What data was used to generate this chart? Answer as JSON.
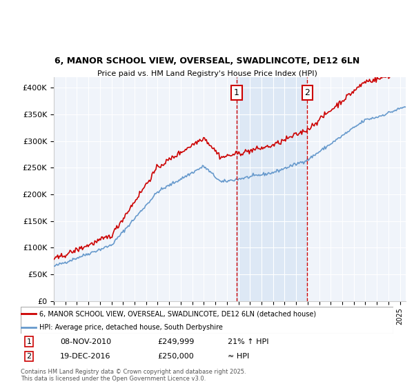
{
  "title_line1": "6, MANOR SCHOOL VIEW, OVERSEAL, SWADLINCOTE, DE12 6LN",
  "title_line2": "Price paid vs. HM Land Registry's House Price Index (HPI)",
  "ylabel": "",
  "xlabel": "",
  "background_color": "#ffffff",
  "plot_bg_color": "#f0f4fa",
  "grid_color": "#ffffff",
  "red_line_color": "#cc0000",
  "blue_line_color": "#6699cc",
  "dashed_line_color": "#cc0000",
  "highlight_fill": "#dde8f5",
  "sale1_date_x": 2010.85,
  "sale2_date_x": 2016.96,
  "sale1_label": "1",
  "sale2_label": "2",
  "legend_red": "6, MANOR SCHOOL VIEW, OVERSEAL, SWADLINCOTE, DE12 6LN (detached house)",
  "legend_blue": "HPI: Average price, detached house, South Derbyshire",
  "table_row1": [
    "1",
    "08-NOV-2010",
    "£249,999",
    "21% ↑ HPI"
  ],
  "table_row2": [
    "2",
    "19-DEC-2016",
    "£250,000",
    "≈ HPI"
  ],
  "footer": "Contains HM Land Registry data © Crown copyright and database right 2025.\nThis data is licensed under the Open Government Licence v3.0.",
  "ylim_min": 0,
  "ylim_max": 420000,
  "yticks": [
    0,
    50000,
    100000,
    150000,
    200000,
    250000,
    300000,
    350000,
    400000
  ],
  "ytick_labels": [
    "£0",
    "£50K",
    "£100K",
    "£150K",
    "£200K",
    "£250K",
    "£300K",
    "£350K",
    "£400K"
  ],
  "xmin": 1995.0,
  "xmax": 2025.5
}
